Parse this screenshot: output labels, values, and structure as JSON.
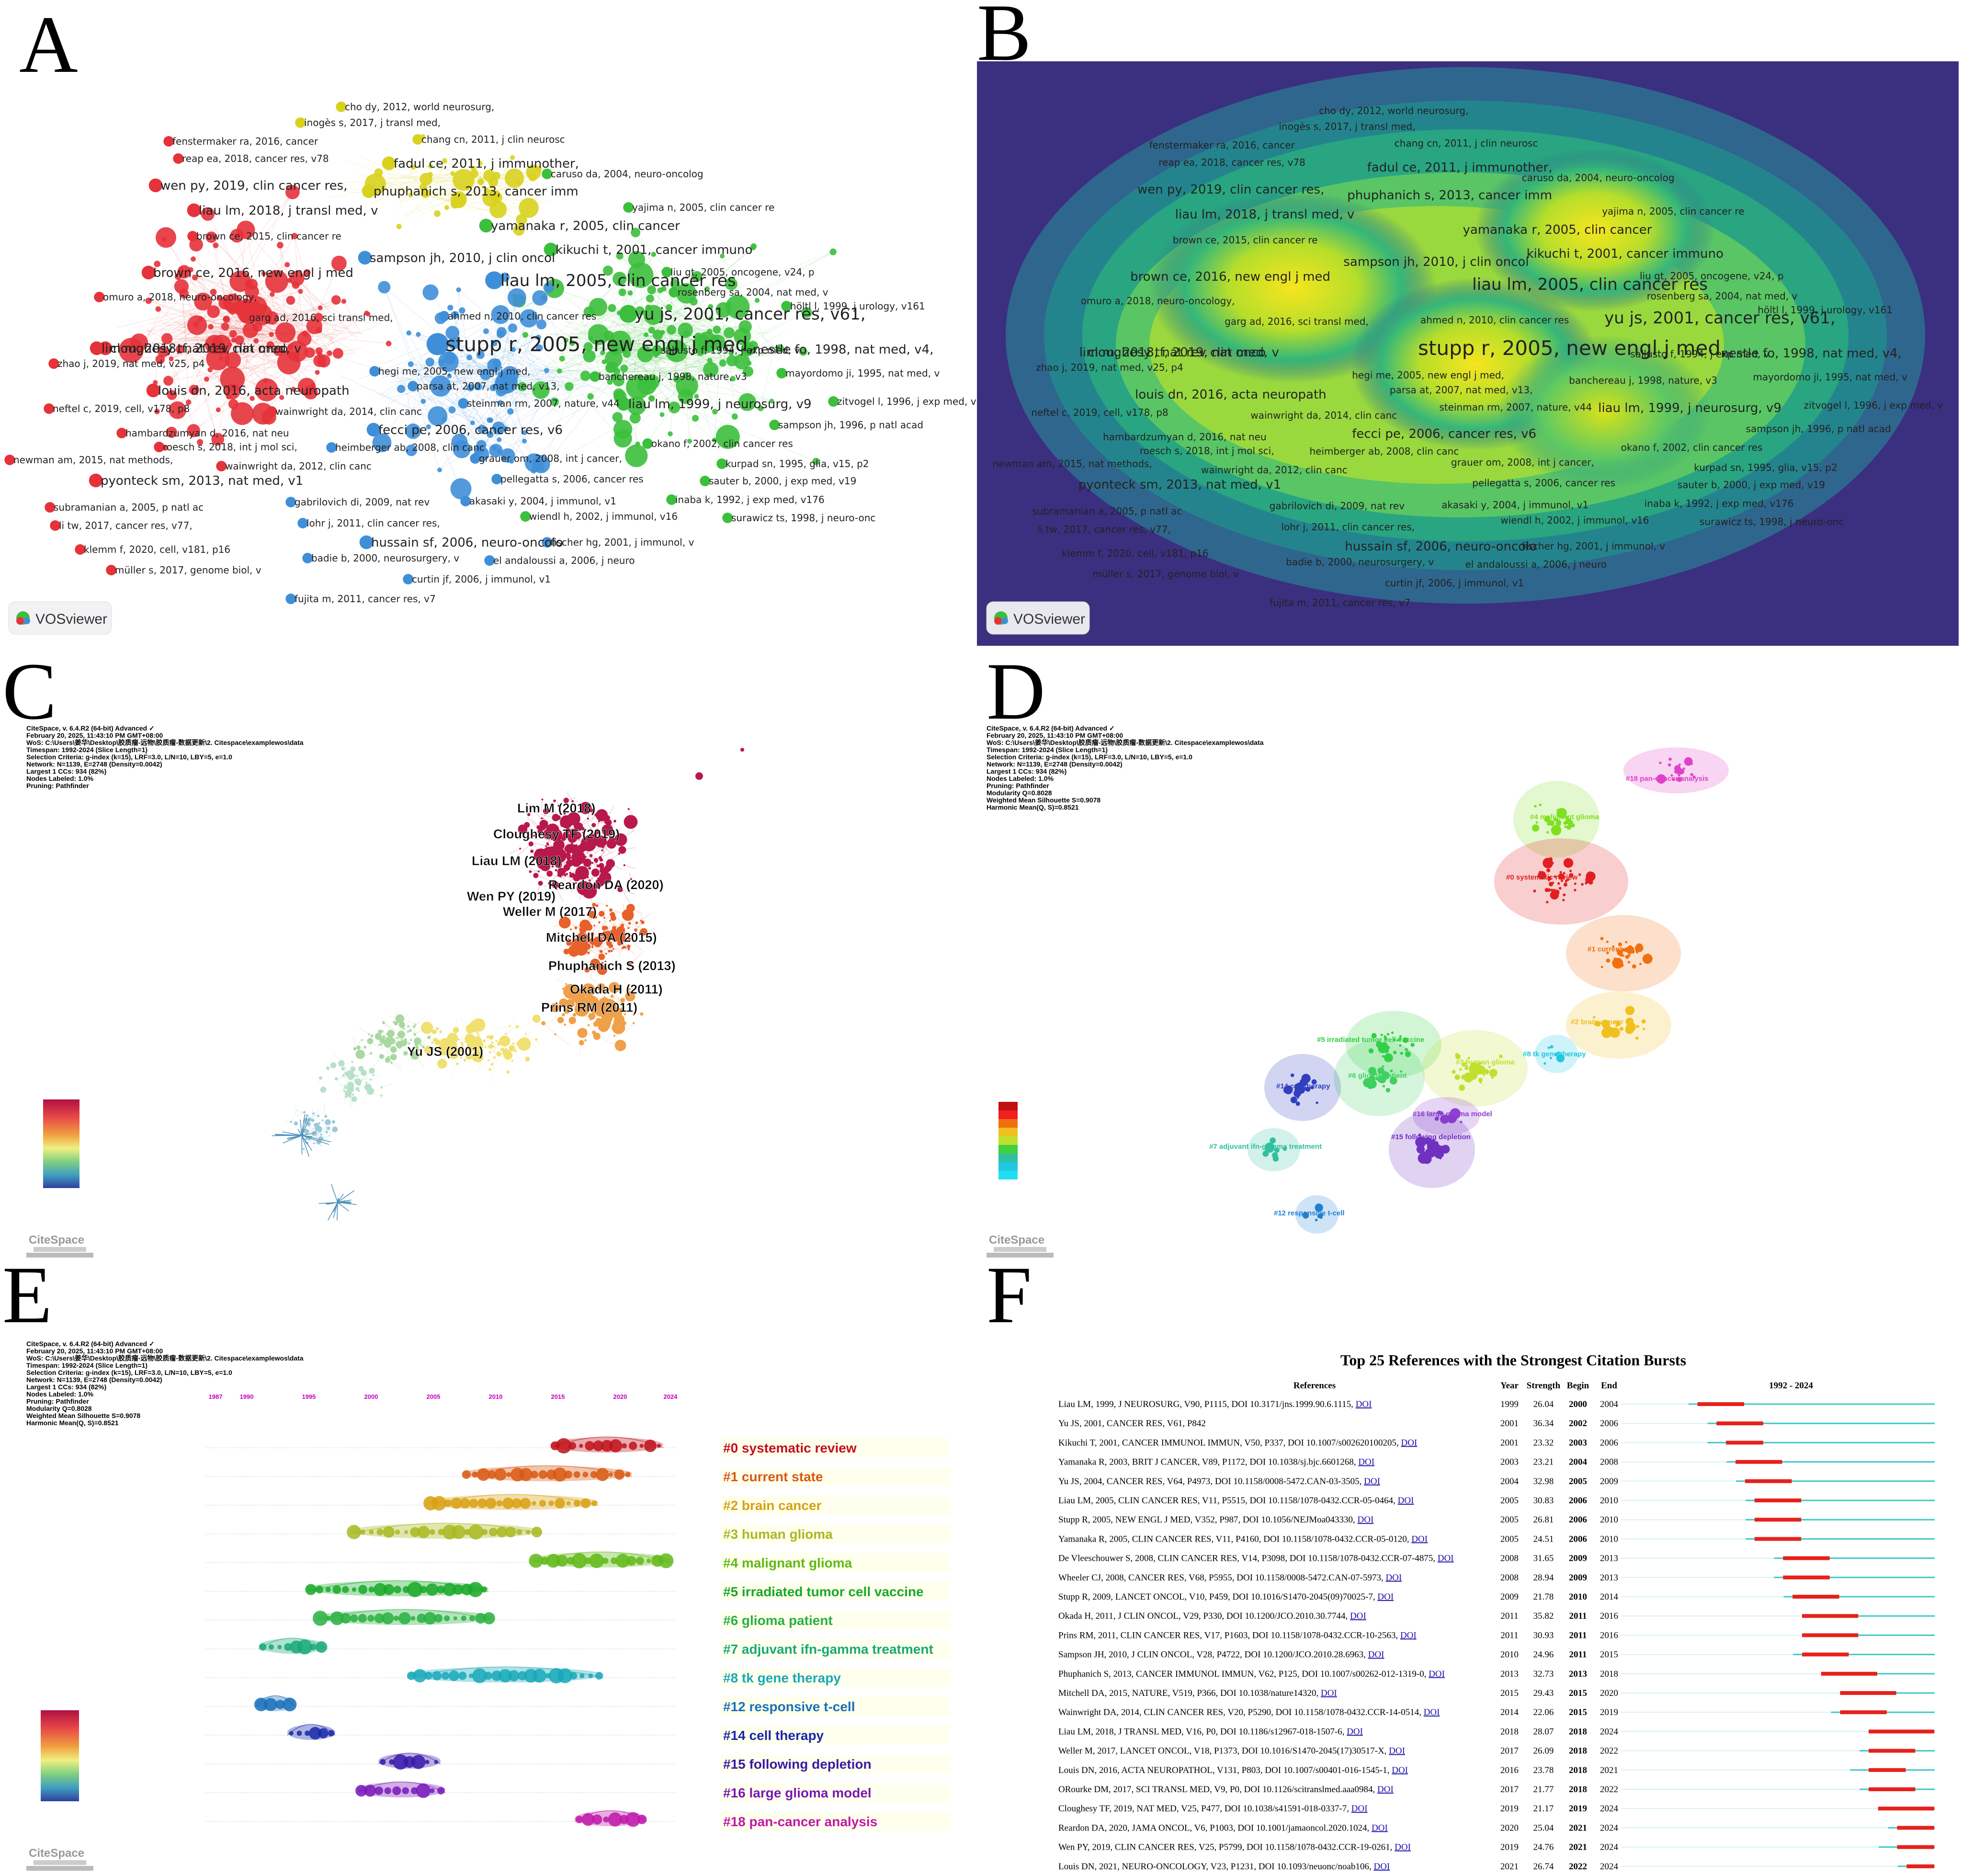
{
  "panel_labels": [
    "A",
    "B",
    "C",
    "D",
    "E",
    "F"
  ],
  "vosviewer": {
    "logo_text": "VOSviewer",
    "labels": [
      {
        "t": "cho dy, 2012, world neurosurg,",
        "c": "y",
        "s": 1
      },
      {
        "t": "inogès s, 2017, j transl med,",
        "c": "y",
        "s": 1
      },
      {
        "t": "fenstermaker ra, 2016, cancer",
        "c": "r",
        "s": 1
      },
      {
        "t": "chang cn, 2011, j clin neurosc",
        "c": "y",
        "s": 1
      },
      {
        "t": "reap ea, 2018, cancer res, v78",
        "c": "r",
        "s": 1
      },
      {
        "t": "fadul ce, 2011, j immunother,",
        "c": "y",
        "s": 2
      },
      {
        "t": "caruso da, 2004, neuro-oncolog",
        "c": "g",
        "s": 1
      },
      {
        "t": "wen py, 2019, clin cancer res,",
        "c": "r",
        "s": 2
      },
      {
        "t": "phuphanich s, 2013, cancer imm",
        "c": "y",
        "s": 2
      },
      {
        "t": "yajima n, 2005, clin cancer re",
        "c": "g",
        "s": 1
      },
      {
        "t": "liau lm, 2018, j transl med, v",
        "c": "r",
        "s": 2
      },
      {
        "t": "yamanaka r, 2005, clin cancer",
        "c": "g",
        "s": 2
      },
      {
        "t": "brown ce, 2015, clin cancer re",
        "c": "r",
        "s": 1
      },
      {
        "t": "kikuchi t, 2001, cancer immuno",
        "c": "g",
        "s": 2
      },
      {
        "t": "sampson jh, 2010, j clin oncol",
        "c": "b",
        "s": 2
      },
      {
        "t": "brown ce, 2016, new engl j med",
        "c": "r",
        "s": 2
      },
      {
        "t": "liu gt, 2005, oncogene, v24, p",
        "c": "g",
        "s": 1
      },
      {
        "t": "liau lm, 2005, clin cancer res",
        "c": "b",
        "s": 3
      },
      {
        "t": "rosenberg sa, 2004, nat med, v",
        "c": "g",
        "s": 1
      },
      {
        "t": "omuro a, 2018, neuro-oncology,",
        "c": "r",
        "s": 1
      },
      {
        "t": "ahmed n, 2010, clin cancer res",
        "c": "b",
        "s": 1
      },
      {
        "t": "höltl l, 1999, j urology, v161",
        "c": "g",
        "s": 1
      },
      {
        "t": "cloughesy tf, 2019, nat med, v",
        "c": "r",
        "s": 2
      },
      {
        "t": "garg ad, 2016, sci transl med,",
        "c": "r",
        "s": 1
      },
      {
        "t": "yu js, 2001, cancer res, v61,",
        "c": "g",
        "s": 3
      },
      {
        "t": "lim m, 2018, nat rev clin onco",
        "c": "r",
        "s": 2
      },
      {
        "t": "stupp r, 2005, new engl j med,",
        "c": "b",
        "s": 4
      },
      {
        "t": "sallusto f, 1994, j exp med, v",
        "c": "g",
        "s": 1
      },
      {
        "t": "nestle fo, 1998, nat med, v4,",
        "c": "g",
        "s": 2
      },
      {
        "t": "zhao j, 2019, nat med, v25, p4",
        "c": "r",
        "s": 1
      },
      {
        "t": "hegi me, 2005, new engl j med,",
        "c": "b",
        "s": 1
      },
      {
        "t": "banchereau j, 1998, nature, v3",
        "c": "g",
        "s": 1
      },
      {
        "t": "mayordomo ji, 1995, nat med, v",
        "c": "g",
        "s": 1
      },
      {
        "t": "louis dn, 2016, acta neuropath",
        "c": "r",
        "s": 2
      },
      {
        "t": "parsa at, 2007, nat med, v13,",
        "c": "b",
        "s": 1
      },
      {
        "t": "neftel c, 2019, cell, v178, p8",
        "c": "r",
        "s": 1
      },
      {
        "t": "steinman rm, 2007, nature, v44",
        "c": "b",
        "s": 1
      },
      {
        "t": "zitvogel l, 1996, j exp med, v",
        "c": "g",
        "s": 1
      },
      {
        "t": "wainwright da, 2014, clin canc",
        "c": "r",
        "s": 1
      },
      {
        "t": "liau lm, 1999, j neurosurg, v9",
        "c": "g",
        "s": 2
      },
      {
        "t": "sampson jh, 1996, p natl acad",
        "c": "g",
        "s": 1
      },
      {
        "t": "hambardzumyan d, 2016, nat neu",
        "c": "r",
        "s": 1
      },
      {
        "t": "fecci pe, 2006, cancer res, v6",
        "c": "b",
        "s": 2
      },
      {
        "t": "roesch s, 2018, int j mol sci,",
        "c": "r",
        "s": 1
      },
      {
        "t": "heimberger ab, 2008, clin canc",
        "c": "b",
        "s": 1
      },
      {
        "t": "okano f, 2002, clin cancer res",
        "c": "g",
        "s": 1
      },
      {
        "t": "newman am, 2015, nat methods,",
        "c": "r",
        "s": 1
      },
      {
        "t": "wainwright da, 2012, clin canc",
        "c": "r",
        "s": 1
      },
      {
        "t": "grauer om, 2008, int j cancer,",
        "c": "b",
        "s": 1
      },
      {
        "t": "kurpad sn, 1995, glia, v15, p2",
        "c": "g",
        "s": 1
      },
      {
        "t": "pyonteck sm, 2013, nat med, v1",
        "c": "r",
        "s": 2
      },
      {
        "t": "pellegatta s, 2006, cancer res",
        "c": "b",
        "s": 1
      },
      {
        "t": "sauter b, 2000, j exp med, v19",
        "c": "g",
        "s": 1
      },
      {
        "t": "subramanian a, 2005, p natl ac",
        "c": "r",
        "s": 1
      },
      {
        "t": "gabrilovich di, 2009, nat rev",
        "c": "b",
        "s": 1
      },
      {
        "t": "akasaki y, 2004, j immunol, v1",
        "c": "b",
        "s": 1
      },
      {
        "t": "inaba k, 1992, j exp med, v176",
        "c": "g",
        "s": 1
      },
      {
        "t": "li tw, 2017, cancer res, v77,",
        "c": "r",
        "s": 1
      },
      {
        "t": "lohr j, 2011, clin cancer res,",
        "c": "b",
        "s": 1
      },
      {
        "t": "wiendl h, 2002, j immunol, v16",
        "c": "g",
        "s": 1
      },
      {
        "t": "surawicz ts, 1998, j neuro-onc",
        "c": "g",
        "s": 1
      },
      {
        "t": "hussain sf, 2006, neuro-oncolo",
        "c": "b",
        "s": 2
      },
      {
        "t": "fischer hg, 2001, j immunol, v",
        "c": "b",
        "s": 1
      },
      {
        "t": "klemm f, 2020, cell, v181, p16",
        "c": "r",
        "s": 1
      },
      {
        "t": "badie b, 2000, neurosurgery, v",
        "c": "b",
        "s": 1
      },
      {
        "t": "el andaloussi a, 2006, j neuro",
        "c": "b",
        "s": 1
      },
      {
        "t": "müller s, 2017, genome biol, v",
        "c": "r",
        "s": 1
      },
      {
        "t": "curtin jf, 2006, j immunol, v1",
        "c": "b",
        "s": 1
      },
      {
        "t": "fujita m, 2011, cancer res, v7",
        "c": "b",
        "s": 1
      }
    ]
  },
  "citespace_header": {
    "line1": "CiteSpace, v. 6.4.R2 (64-bit) Advanced ✓",
    "line2": "February 20, 2025, 11:43:10 PM GMT+08:00",
    "line3": "WoS: C:\\Users\\姜华\\Desktop\\胶质瘤-远物\\胶质瘤-数据更新\\2. Citespace\\examplewos\\data",
    "line4": "Timespan: 1992-2024 (Slice Length=1)",
    "line5": "Selection Criteria: g-index (k=15), LRF=3.0, L/N=10, LBY=5, e=1.0",
    "line6": "Network: N=1139, E=2748 (Density=0.0042)",
    "line7": "Largest 1 CCs: 934 (82%)",
    "line8": "Nodes Labeled: 1.0%",
    "line9": "Pruning: Pathfinder",
    "line10": "Modularity Q=0.8028",
    "line11": "Weighted Mean Silhouette S=0.9078",
    "line12": "Harmonic Mean(Q, S)=0.8521",
    "logo": "CiteSpace"
  },
  "panel_c_labels": [
    "Lim M (2018)",
    "Cloughesy TF (2019)",
    "Liau LM (2018)",
    "Reardon DA (2020)",
    "Wen PY (2019)",
    "Weller M (2017)",
    "Mitchell DA (2015)",
    "Phuphanich S (2013)",
    "Okada H (2011)",
    "Prins RM (2011)",
    "Yu JS (2001)"
  ],
  "panel_d_clusters": [
    {
      "id": "#18 pan-cancer analysis",
      "color": "#e040c8"
    },
    {
      "id": "#4 malignant glioma",
      "color": "#7ee020"
    },
    {
      "id": "#0 systematic review",
      "color": "#e02020"
    },
    {
      "id": "#1 current state",
      "color": "#f07010"
    },
    {
      "id": "#2 brain cancer",
      "color": "#f0c020"
    },
    {
      "id": "#5 irradiated tumor cell vaccine",
      "color": "#30d040"
    },
    {
      "id": "#3 human glioma",
      "color": "#c0e030"
    },
    {
      "id": "#8 tk gene therapy",
      "color": "#20c8e0"
    },
    {
      "id": "#6 glioma patient",
      "color": "#40d060"
    },
    {
      "id": "#14 cell therapy",
      "color": "#3040c0"
    },
    {
      "id": "#16 large glioma model",
      "color": "#9040d0"
    },
    {
      "id": "#15 following depletion",
      "color": "#7030c0"
    },
    {
      "id": "#7 adjuvant ifn-gamma treatment",
      "color": "#30c0a0"
    },
    {
      "id": "#12 responsive t-cell",
      "color": "#2080d0"
    }
  ],
  "timeline": {
    "years": [
      "1987",
      "1990",
      "1995",
      "2000",
      "2005",
      "2010",
      "2015",
      "2020",
      "2024"
    ],
    "clusters": [
      {
        "label": "#0 systematic review",
        "color": "#c0101a"
      },
      {
        "label": "#1 current state",
        "color": "#d85810"
      },
      {
        "label": "#2 brain cancer",
        "color": "#d8a010"
      },
      {
        "label": "#3 human glioma",
        "color": "#a8b820"
      },
      {
        "label": "#4 malignant glioma",
        "color": "#60b818"
      },
      {
        "label": "#5 irradiated tumor cell vaccine",
        "color": "#18a828"
      },
      {
        "label": "#6 glioma patient",
        "color": "#28b040"
      },
      {
        "label": "#7 adjuvant ifn-gamma treatment",
        "color": "#18a878"
      },
      {
        "label": "#8 tk gene therapy",
        "color": "#18a8b8"
      },
      {
        "label": "#12 responsive t-cell",
        "color": "#1870b8"
      },
      {
        "label": "#14 cell therapy",
        "color": "#1828a8"
      },
      {
        "label": "#15 following depletion",
        "color": "#3818a8"
      },
      {
        "label": "#16 large glioma model",
        "color": "#7818b8"
      },
      {
        "label": "#18 pan-cancer analysis",
        "color": "#c018a8"
      }
    ]
  },
  "bursts": {
    "title": "Top 25 References with the Strongest Citation Bursts",
    "headers": {
      "ref": "References",
      "year": "Year",
      "strength": "Strength",
      "begin": "Begin",
      "end": "End",
      "range": "1992 - 2024"
    },
    "doi": "DOI",
    "rows": [
      {
        "ref": "Liau LM, 1999, J NEUROSURG, V90, P1115, DOI 10.3171/jns.1999.90.6.1115,",
        "year": "1999",
        "strength": "26.04",
        "begin": "2000",
        "end": "2004"
      },
      {
        "ref": "Yu JS, 2001, CANCER RES, V61, P842",
        "year": "2001",
        "strength": "36.34",
        "begin": "2002",
        "end": "2006"
      },
      {
        "ref": "Kikuchi T, 2001, CANCER IMMUNOL IMMUN, V50, P337, DOI 10.1007/s002620100205,",
        "year": "2001",
        "strength": "23.32",
        "begin": "2003",
        "end": "2006"
      },
      {
        "ref": "Yamanaka R, 2003, BRIT J CANCER, V89, P1172, DOI 10.1038/sj.bjc.6601268,",
        "year": "2003",
        "strength": "23.21",
        "begin": "2004",
        "end": "2008"
      },
      {
        "ref": "Yu JS, 2004, CANCER RES, V64, P4973, DOI 10.1158/0008-5472.CAN-03-3505,",
        "year": "2004",
        "strength": "32.98",
        "begin": "2005",
        "end": "2009"
      },
      {
        "ref": "Liau LM, 2005, CLIN CANCER RES, V11, P5515, DOI 10.1158/1078-0432.CCR-05-0464,",
        "year": "2005",
        "strength": "30.83",
        "begin": "2006",
        "end": "2010"
      },
      {
        "ref": "Stupp R, 2005, NEW ENGL J MED, V352, P987, DOI 10.1056/NEJMoa043330,",
        "year": "2005",
        "strength": "26.81",
        "begin": "2006",
        "end": "2010"
      },
      {
        "ref": "Yamanaka R, 2005, CLIN CANCER RES, V11, P4160, DOI 10.1158/1078-0432.CCR-05-0120,",
        "year": "2005",
        "strength": "24.51",
        "begin": "2006",
        "end": "2010"
      },
      {
        "ref": "De Vleeschouwer S, 2008, CLIN CANCER RES, V14, P3098, DOI 10.1158/1078-0432.CCR-07-4875,",
        "year": "2008",
        "strength": "31.65",
        "begin": "2009",
        "end": "2013"
      },
      {
        "ref": "Wheeler CJ, 2008, CANCER RES, V68, P5955, DOI 10.1158/0008-5472.CAN-07-5973,",
        "year": "2008",
        "strength": "28.94",
        "begin": "2009",
        "end": "2013"
      },
      {
        "ref": "Stupp R, 2009, LANCET ONCOL, V10, P459, DOI 10.1016/S1470-2045(09)70025-7,",
        "year": "2009",
        "strength": "21.78",
        "begin": "2010",
        "end": "2014"
      },
      {
        "ref": "Okada H, 2011, J CLIN ONCOL, V29, P330, DOI 10.1200/JCO.2010.30.7744,",
        "year": "2011",
        "strength": "35.82",
        "begin": "2011",
        "end": "2016"
      },
      {
        "ref": "Prins RM, 2011, CLIN CANCER RES, V17, P1603, DOI 10.1158/1078-0432.CCR-10-2563,",
        "year": "2011",
        "strength": "30.93",
        "begin": "2011",
        "end": "2016"
      },
      {
        "ref": "Sampson JH, 2010, J CLIN ONCOL, V28, P4722, DOI 10.1200/JCO.2010.28.6963,",
        "year": "2010",
        "strength": "24.96",
        "begin": "2011",
        "end": "2015"
      },
      {
        "ref": "Phuphanich S, 2013, CANCER IMMUNOL IMMUN, V62, P125, DOI 10.1007/s00262-012-1319-0,",
        "year": "2013",
        "strength": "32.73",
        "begin": "2013",
        "end": "2018"
      },
      {
        "ref": "Mitchell DA, 2015, NATURE, V519, P366, DOI 10.1038/nature14320,",
        "year": "2015",
        "strength": "29.43",
        "begin": "2015",
        "end": "2020"
      },
      {
        "ref": "Wainwright DA, 2014, CLIN CANCER RES, V20, P5290, DOI 10.1158/1078-0432.CCR-14-0514,",
        "year": "2014",
        "strength": "22.06",
        "begin": "2015",
        "end": "2019"
      },
      {
        "ref": "Liau LM, 2018, J TRANSL MED, V16, P0, DOI 10.1186/s12967-018-1507-6,",
        "year": "2018",
        "strength": "28.07",
        "begin": "2018",
        "end": "2024"
      },
      {
        "ref": "Weller M, 2017, LANCET ONCOL, V18, P1373, DOI 10.1016/S1470-2045(17)30517-X,",
        "year": "2017",
        "strength": "26.09",
        "begin": "2018",
        "end": "2022"
      },
      {
        "ref": "Louis DN, 2016, ACTA NEUROPATHOL, V131, P803, DOI 10.1007/s00401-016-1545-1,",
        "year": "2016",
        "strength": "23.78",
        "begin": "2018",
        "end": "2021"
      },
      {
        "ref": "ORourke DM, 2017, SCI TRANSL MED, V9, P0, DOI 10.1126/scitranslmed.aaa0984,",
        "year": "2017",
        "strength": "21.77",
        "begin": "2018",
        "end": "2022"
      },
      {
        "ref": "Cloughesy TF, 2019, NAT MED, V25, P477, DOI 10.1038/s41591-018-0337-7,",
        "year": "2019",
        "strength": "21.17",
        "begin": "2019",
        "end": "2024"
      },
      {
        "ref": "Reardon DA, 2020, JAMA ONCOL, V6, P1003, DOI 10.1001/jamaoncol.2020.1024,",
        "year": "2020",
        "strength": "25.04",
        "begin": "2021",
        "end": "2024"
      },
      {
        "ref": "Wen PY, 2019, CLIN CANCER RES, V25, P5799, DOI 10.1158/1078-0432.CCR-19-0261,",
        "year": "2019",
        "strength": "24.76",
        "begin": "2021",
        "end": "2024"
      },
      {
        "ref": "Louis DN, 2021, NEURO-ONCOLOGY, V23, P1231, DOI 10.1093/neuonc/noab106,",
        "year": "2021",
        "strength": "26.74",
        "begin": "2022",
        "end": "2024"
      }
    ]
  },
  "colors": {
    "red": "#e6323a",
    "green": "#3cbf3c",
    "blue": "#3f8fd8",
    "yellow": "#d8d21e",
    "viridis_bg": "#3b2f80",
    "burst_red": "#e8201c",
    "burst_cyan": "#3ec8c8"
  }
}
